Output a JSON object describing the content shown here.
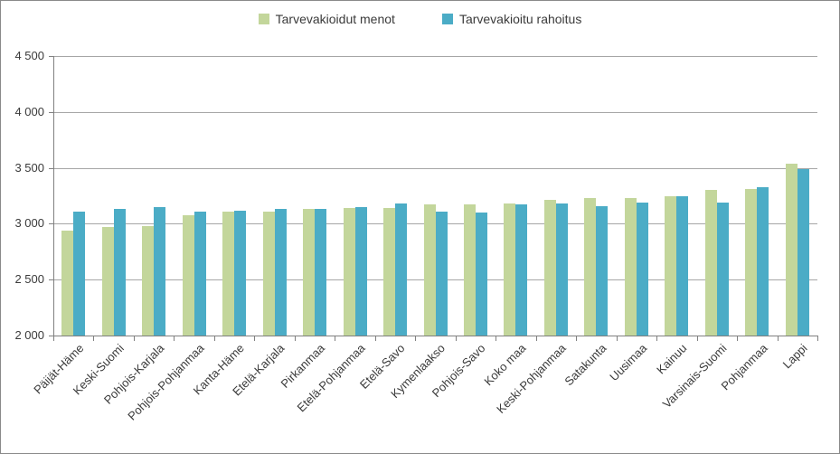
{
  "chart_data": {
    "type": "bar",
    "title": "",
    "xlabel": "",
    "ylabel": "",
    "ylim": [
      2000,
      4500
    ],
    "y_tick_values": [
      2000,
      2500,
      3000,
      3500,
      4000,
      4500
    ],
    "y_tick_labels": [
      "2 000",
      "2 500",
      "3 000",
      "3 500",
      "4 000",
      "4 500"
    ],
    "grid": true,
    "legend_position": "top-center",
    "categories": [
      "Päijät-Häme",
      "Keski-Suomi",
      "Pohjois-Karjala",
      "Pohjois-Pohjanmaa",
      "Kanta-Häme",
      "Etelä-Karjala",
      "Pirkanmaa",
      "Etelä-Pohjanmaa",
      "Etelä-Savo",
      "Kymenlaakso",
      "Pohjois-Savo",
      "Koko maa",
      "Keski-Pohjanmaa",
      "Satakunta",
      "Uusimaa",
      "Kainuu",
      "Varsinais-Suomi",
      "Pohjanmaa",
      "Lappi"
    ],
    "series": [
      {
        "name": "Tarvevakioidut menot",
        "color": "#C3D69B",
        "values": [
          2940,
          2970,
          2980,
          3080,
          3110,
          3110,
          3130,
          3140,
          3140,
          3170,
          3170,
          3180,
          3210,
          3230,
          3230,
          3250,
          3300,
          3310,
          3540
        ]
      },
      {
        "name": "Tarvevakioitu rahoitus",
        "color": "#4BACC6",
        "values": [
          3110,
          3130,
          3150,
          3110,
          3120,
          3130,
          3130,
          3150,
          3180,
          3110,
          3100,
          3170,
          3180,
          3160,
          3190,
          3250,
          3190,
          3330,
          3490
        ]
      }
    ],
    "colors": {
      "gridline": "#A6A6A6",
      "axis": "#808080",
      "text": "#3A3A3A",
      "border": "#8A8A8A",
      "background": "#FFFFFF"
    }
  }
}
